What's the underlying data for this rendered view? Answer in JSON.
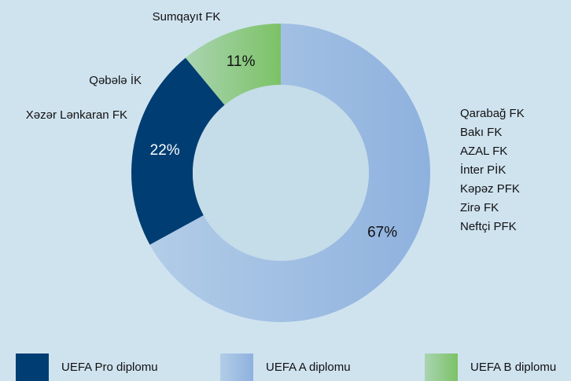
{
  "chart_data": {
    "type": "pie",
    "categories": [
      "UEFA A diplomu",
      "UEFA Pro diplomu",
      "UEFA B diplomu"
    ],
    "values": [
      67,
      22,
      11
    ],
    "value_labels": [
      "67%",
      "22%",
      "11%"
    ],
    "colors": [
      "#8eb1de",
      "#003d73",
      "#7cc266"
    ],
    "clubs": [
      [
        "Qarabağ FK",
        "Bakı FK",
        "AZAL FK",
        "İnter PİK",
        "Kəpəz PFK",
        "Zirə FK",
        "Neftçi PFK"
      ],
      [
        "Qəbələ İK",
        "Xəzər Lənkaran FK"
      ],
      [
        "Sumqayıt FK"
      ]
    ]
  }
}
